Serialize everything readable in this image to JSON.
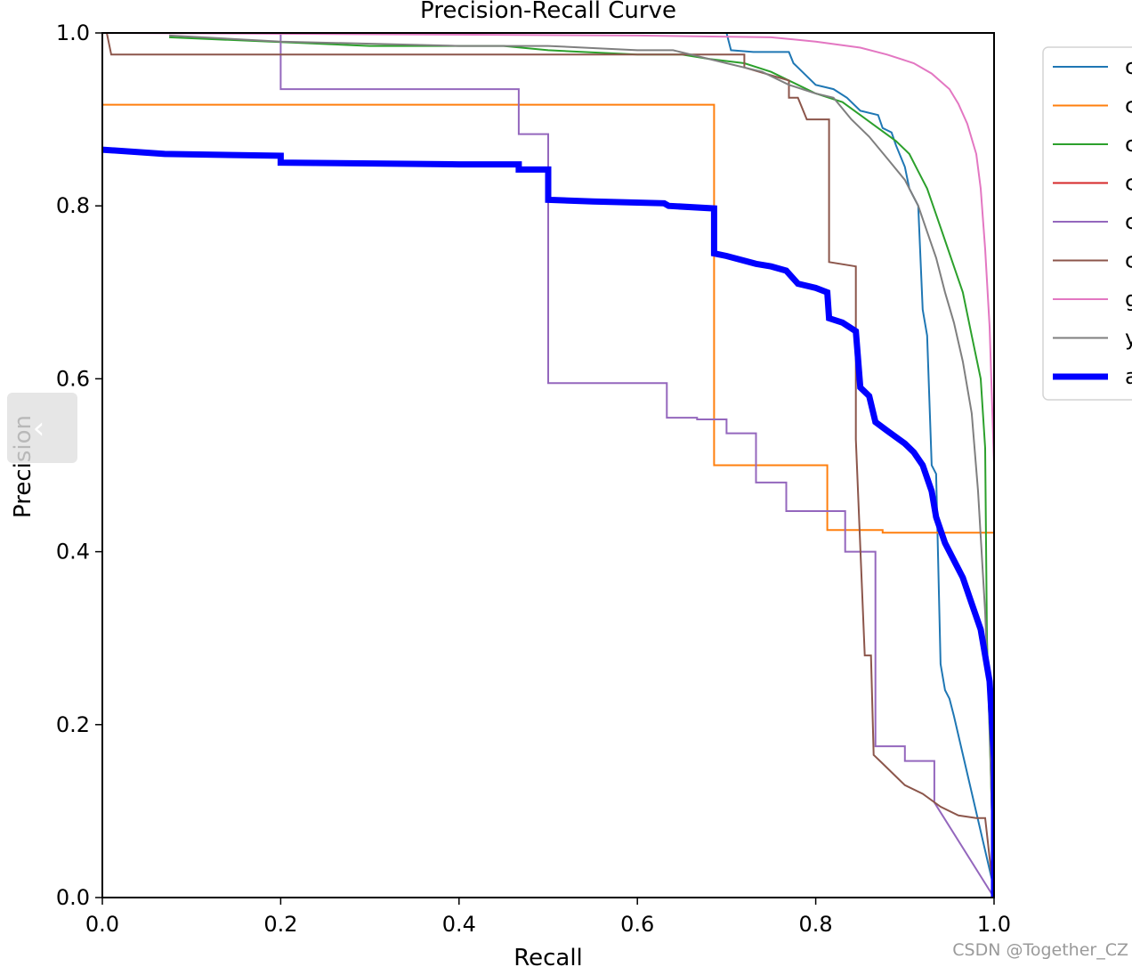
{
  "chart_data": {
    "type": "line",
    "title": "Precision-Recall Curve",
    "xlabel": "Recall",
    "ylabel": "Precision",
    "xlim": [
      0.0,
      1.0
    ],
    "ylim": [
      0.0,
      1.0
    ],
    "xticks": [
      "0.0",
      "0.2",
      "0.4",
      "0.6",
      "0.8",
      "1.0"
    ],
    "yticks": [
      "0.0",
      "0.2",
      "0.4",
      "0.6",
      "0.8",
      "1.0"
    ],
    "grid": false,
    "legend_position": "outside-right-top",
    "series": [
      {
        "name": "c",
        "color": "#1f77b4",
        "width": 2,
        "points": [
          [
            0,
            1.0
          ],
          [
            0.7,
            1.0
          ],
          [
            0.705,
            0.98
          ],
          [
            0.73,
            0.978
          ],
          [
            0.77,
            0.978
          ],
          [
            0.775,
            0.965
          ],
          [
            0.78,
            0.96
          ],
          [
            0.8,
            0.94
          ],
          [
            0.82,
            0.935
          ],
          [
            0.835,
            0.925
          ],
          [
            0.85,
            0.91
          ],
          [
            0.87,
            0.905
          ],
          [
            0.875,
            0.89
          ],
          [
            0.885,
            0.885
          ],
          [
            0.89,
            0.87
          ],
          [
            0.9,
            0.845
          ],
          [
            0.905,
            0.82
          ],
          [
            0.915,
            0.8
          ],
          [
            0.92,
            0.68
          ],
          [
            0.925,
            0.65
          ],
          [
            0.93,
            0.5
          ],
          [
            0.935,
            0.49
          ],
          [
            0.94,
            0.27
          ],
          [
            0.945,
            0.24
          ],
          [
            0.95,
            0.23
          ],
          [
            0.955,
            0.21
          ],
          [
            1.0,
            0.01
          ]
        ]
      },
      {
        "name": "c",
        "color": "#ff7f0e",
        "width": 2,
        "points": [
          [
            0,
            0.917
          ],
          [
            0.686,
            0.917
          ],
          [
            0.686,
            0.5
          ],
          [
            0.813,
            0.5
          ],
          [
            0.813,
            0.425
          ],
          [
            0.875,
            0.425
          ],
          [
            0.875,
            0.422
          ],
          [
            1.0,
            0.422
          ],
          [
            1.0,
            0.0
          ]
        ]
      },
      {
        "name": "c",
        "color": "#2ca02c",
        "width": 2,
        "points": [
          [
            0.075,
            0.995
          ],
          [
            0.3,
            0.985
          ],
          [
            0.45,
            0.985
          ],
          [
            0.5,
            0.98
          ],
          [
            0.6,
            0.975
          ],
          [
            0.65,
            0.975
          ],
          [
            0.68,
            0.97
          ],
          [
            0.72,
            0.965
          ],
          [
            0.75,
            0.955
          ],
          [
            0.78,
            0.94
          ],
          [
            0.8,
            0.93
          ],
          [
            0.83,
            0.92
          ],
          [
            0.85,
            0.905
          ],
          [
            0.87,
            0.89
          ],
          [
            0.89,
            0.875
          ],
          [
            0.905,
            0.86
          ],
          [
            0.915,
            0.84
          ],
          [
            0.925,
            0.82
          ],
          [
            0.935,
            0.79
          ],
          [
            0.945,
            0.76
          ],
          [
            0.955,
            0.73
          ],
          [
            0.965,
            0.7
          ],
          [
            0.975,
            0.65
          ],
          [
            0.985,
            0.6
          ],
          [
            0.99,
            0.52
          ],
          [
            0.992,
            0.3
          ],
          [
            1.0,
            0.01
          ]
        ]
      },
      {
        "name": "c",
        "color": "#d62728",
        "width": 2,
        "points": [
          [
            0,
            0.0
          ],
          [
            1.0,
            0.0
          ]
        ]
      },
      {
        "name": "c",
        "color": "#9467bd",
        "width": 2,
        "points": [
          [
            0,
            1.0
          ],
          [
            0.2,
            1.0
          ],
          [
            0.2,
            0.935
          ],
          [
            0.467,
            0.935
          ],
          [
            0.467,
            0.883
          ],
          [
            0.5,
            0.883
          ],
          [
            0.5,
            0.595
          ],
          [
            0.633,
            0.595
          ],
          [
            0.633,
            0.555
          ],
          [
            0.667,
            0.555
          ],
          [
            0.667,
            0.553
          ],
          [
            0.7,
            0.553
          ],
          [
            0.7,
            0.537
          ],
          [
            0.733,
            0.537
          ],
          [
            0.733,
            0.48
          ],
          [
            0.767,
            0.48
          ],
          [
            0.767,
            0.447
          ],
          [
            0.833,
            0.447
          ],
          [
            0.833,
            0.4
          ],
          [
            0.867,
            0.4
          ],
          [
            0.867,
            0.175
          ],
          [
            0.9,
            0.175
          ],
          [
            0.9,
            0.158
          ],
          [
            0.933,
            0.158
          ],
          [
            0.933,
            0.11
          ],
          [
            1.0,
            0.0
          ]
        ]
      },
      {
        "name": "c",
        "color": "#8c564b",
        "width": 2,
        "points": [
          [
            0.005,
            1.0
          ],
          [
            0.01,
            0.975
          ],
          [
            0.72,
            0.975
          ],
          [
            0.72,
            0.96
          ],
          [
            0.77,
            0.945
          ],
          [
            0.77,
            0.925
          ],
          [
            0.78,
            0.925
          ],
          [
            0.79,
            0.9
          ],
          [
            0.815,
            0.9
          ],
          [
            0.815,
            0.735
          ],
          [
            0.845,
            0.73
          ],
          [
            0.845,
            0.53
          ],
          [
            0.855,
            0.28
          ],
          [
            0.862,
            0.28
          ],
          [
            0.865,
            0.165
          ],
          [
            0.875,
            0.155
          ],
          [
            0.89,
            0.14
          ],
          [
            0.9,
            0.13
          ],
          [
            0.92,
            0.12
          ],
          [
            0.94,
            0.105
          ],
          [
            0.96,
            0.095
          ],
          [
            0.98,
            0.092
          ],
          [
            0.99,
            0.092
          ],
          [
            1.0,
            0.0
          ]
        ]
      },
      {
        "name": "g",
        "color": "#e377c2",
        "width": 2,
        "points": [
          [
            0,
            1.0
          ],
          [
            0.6,
            0.997
          ],
          [
            0.75,
            0.995
          ],
          [
            0.8,
            0.99
          ],
          [
            0.85,
            0.983
          ],
          [
            0.88,
            0.975
          ],
          [
            0.91,
            0.965
          ],
          [
            0.93,
            0.953
          ],
          [
            0.95,
            0.935
          ],
          [
            0.96,
            0.918
          ],
          [
            0.97,
            0.895
          ],
          [
            0.98,
            0.86
          ],
          [
            0.985,
            0.82
          ],
          [
            0.99,
            0.75
          ],
          [
            0.995,
            0.66
          ],
          [
            1.0,
            0.5
          ],
          [
            1.0,
            0.0
          ]
        ]
      },
      {
        "name": "y",
        "color": "#7f7f7f",
        "width": 2,
        "points": [
          [
            0.075,
            0.997
          ],
          [
            0.2,
            0.99
          ],
          [
            0.4,
            0.985
          ],
          [
            0.5,
            0.985
          ],
          [
            0.6,
            0.98
          ],
          [
            0.64,
            0.98
          ],
          [
            0.7,
            0.965
          ],
          [
            0.74,
            0.955
          ],
          [
            0.77,
            0.94
          ],
          [
            0.8,
            0.93
          ],
          [
            0.82,
            0.925
          ],
          [
            0.84,
            0.9
          ],
          [
            0.86,
            0.88
          ],
          [
            0.88,
            0.855
          ],
          [
            0.9,
            0.83
          ],
          [
            0.915,
            0.8
          ],
          [
            0.925,
            0.77
          ],
          [
            0.935,
            0.74
          ],
          [
            0.945,
            0.7
          ],
          [
            0.955,
            0.665
          ],
          [
            0.965,
            0.62
          ],
          [
            0.975,
            0.56
          ],
          [
            0.982,
            0.47
          ],
          [
            0.99,
            0.33
          ],
          [
            0.995,
            0.2
          ],
          [
            1.0,
            0.0
          ]
        ]
      },
      {
        "name": "a",
        "color": "#0000ff",
        "width": 7,
        "points": [
          [
            0,
            0.865
          ],
          [
            0.07,
            0.86
          ],
          [
            0.2,
            0.858
          ],
          [
            0.2,
            0.85
          ],
          [
            0.4,
            0.848
          ],
          [
            0.467,
            0.848
          ],
          [
            0.467,
            0.842
          ],
          [
            0.5,
            0.842
          ],
          [
            0.5,
            0.807
          ],
          [
            0.55,
            0.805
          ],
          [
            0.63,
            0.803
          ],
          [
            0.635,
            0.8
          ],
          [
            0.686,
            0.797
          ],
          [
            0.686,
            0.745
          ],
          [
            0.7,
            0.742
          ],
          [
            0.733,
            0.733
          ],
          [
            0.75,
            0.73
          ],
          [
            0.767,
            0.725
          ],
          [
            0.78,
            0.71
          ],
          [
            0.8,
            0.705
          ],
          [
            0.813,
            0.7
          ],
          [
            0.815,
            0.67
          ],
          [
            0.83,
            0.665
          ],
          [
            0.845,
            0.655
          ],
          [
            0.85,
            0.59
          ],
          [
            0.86,
            0.58
          ],
          [
            0.867,
            0.55
          ],
          [
            0.88,
            0.54
          ],
          [
            0.9,
            0.525
          ],
          [
            0.91,
            0.515
          ],
          [
            0.92,
            0.5
          ],
          [
            0.93,
            0.47
          ],
          [
            0.935,
            0.44
          ],
          [
            0.945,
            0.41
          ],
          [
            0.955,
            0.39
          ],
          [
            0.965,
            0.37
          ],
          [
            0.975,
            0.34
          ],
          [
            0.985,
            0.31
          ],
          [
            0.99,
            0.28
          ],
          [
            0.995,
            0.25
          ],
          [
            1.0,
            0.16
          ],
          [
            1.0,
            0.0
          ]
        ]
      }
    ]
  },
  "watermark": "CSDN @Together_CZ",
  "collapse_icon": "chevron-left-icon"
}
